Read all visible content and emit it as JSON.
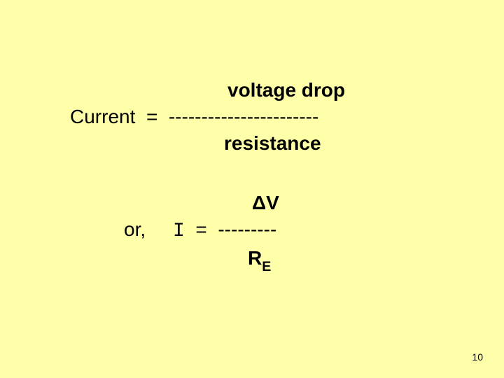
{
  "background_color": "#ffffaa",
  "text_color": "#000000",
  "eq1": {
    "numerator": "voltage drop",
    "middle_lhs": "Current",
    "middle_op": "=",
    "middle_dashes": "-----------------------",
    "denominator": "resistance",
    "font_size": 28,
    "weight_numden": "bold",
    "weight_mid": "normal"
  },
  "eq2": {
    "prefix": "or,",
    "numerator": "ΔV",
    "var": "I",
    "op": "=",
    "dashes": "---------",
    "den_main": "R",
    "den_sub": "E",
    "font_size": 28
  },
  "page_number": "10"
}
